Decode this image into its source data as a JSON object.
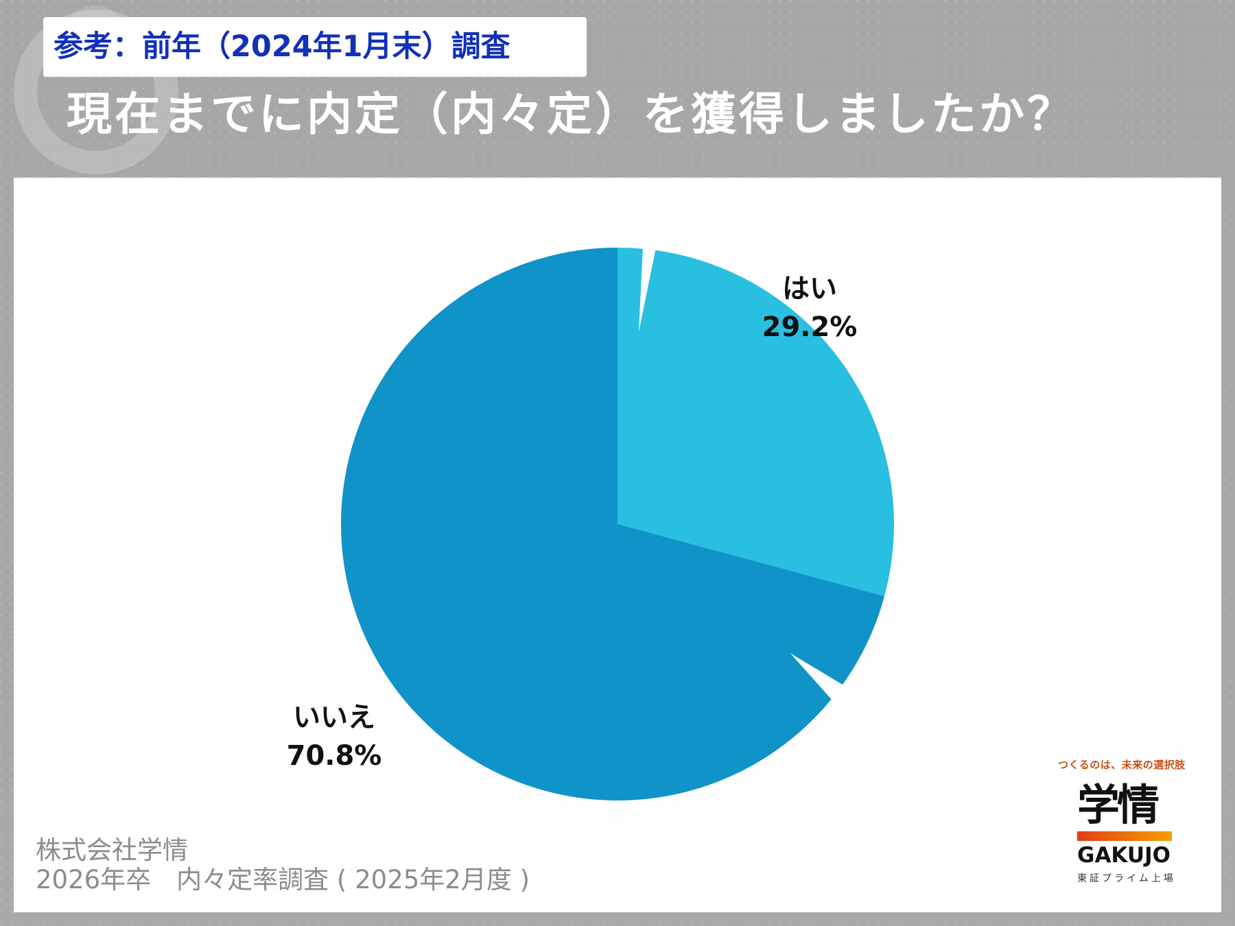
{
  "header": {
    "reference_label": "参考：前年（2024年1月末）調査",
    "question": "現在までに内定（内々定）を獲得しましたか？"
  },
  "chart_data": {
    "type": "pie",
    "title": "現在までに内定（内々定）を獲得しましたか？",
    "categories": [
      "はい",
      "いいえ"
    ],
    "values": [
      29.2,
      70.8
    ],
    "labels": [
      "29.2%",
      "70.8%"
    ],
    "colors": [
      "#29bfe0",
      "#0f93c8"
    ],
    "legend": "none"
  },
  "source": {
    "company": "株式会社学情",
    "survey": "2026年卒　内々定率調査 ( 2025年2月度 )"
  },
  "logo": {
    "tagline": "つくるのは、未来の選択肢",
    "name_ja": "学情",
    "name_en": "GAKUJO",
    "sub": "東証プライム上場"
  }
}
